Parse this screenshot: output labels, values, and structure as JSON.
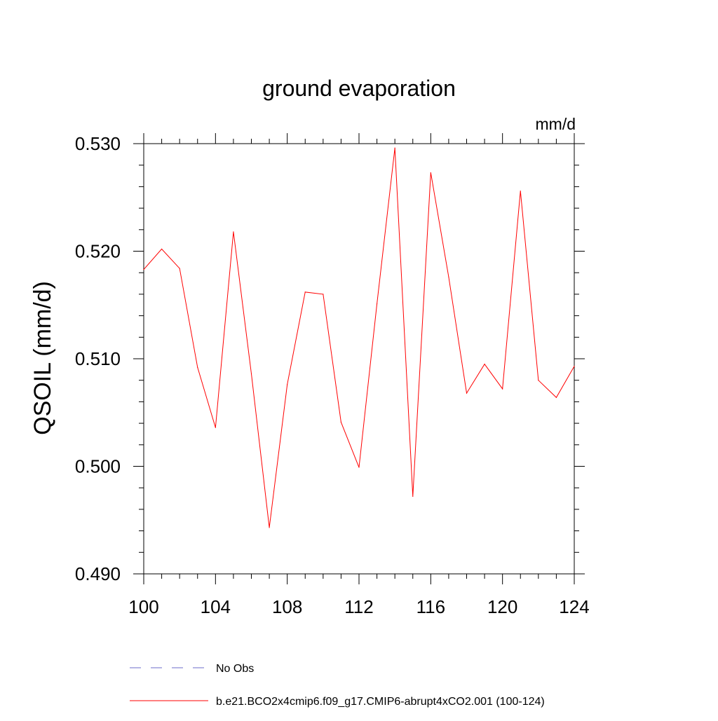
{
  "chart_data": {
    "type": "line",
    "title": "ground evaporation",
    "units_label": "mm/d",
    "ylabel": "QSOIL  (mm/d)",
    "xlabel": "",
    "xlim": [
      100,
      124
    ],
    "ylim": [
      0.49,
      0.53
    ],
    "x_ticks": [
      100,
      104,
      108,
      112,
      116,
      120,
      124
    ],
    "x_tick_labels": [
      "100",
      "104",
      "108",
      "112",
      "116",
      "120",
      "124"
    ],
    "y_ticks": [
      0.49,
      0.5,
      0.51,
      0.52,
      0.53
    ],
    "y_tick_labels": [
      "0.490",
      "0.500",
      "0.510",
      "0.520",
      "0.530"
    ],
    "grid": false,
    "legend_position": "bottom",
    "series": [
      {
        "name": "b.e21.BCO2x4cmip6.f09_g17.CMIP6-abrupt4xCO2.001 (100-124)",
        "color": "#ff0000",
        "style": "solid",
        "x": [
          100,
          101,
          102,
          103,
          104,
          105,
          106,
          107,
          108,
          109,
          110,
          111,
          112,
          113,
          114,
          115,
          116,
          117,
          118,
          119,
          120,
          121,
          122,
          123,
          124
        ],
        "values": [
          0.5183,
          0.5202,
          0.5184,
          0.5092,
          0.5036,
          0.5218,
          0.5086,
          0.4943,
          0.5076,
          0.5162,
          0.516,
          0.5041,
          0.4999,
          0.5151,
          0.5296,
          0.4972,
          0.5273,
          0.5176,
          0.5068,
          0.5095,
          0.5072,
          0.5256,
          0.508,
          0.5064,
          0.5093
        ]
      },
      {
        "name": "No Obs",
        "color": "#6b6bc8",
        "style": "dashed",
        "x": [],
        "values": []
      }
    ]
  }
}
